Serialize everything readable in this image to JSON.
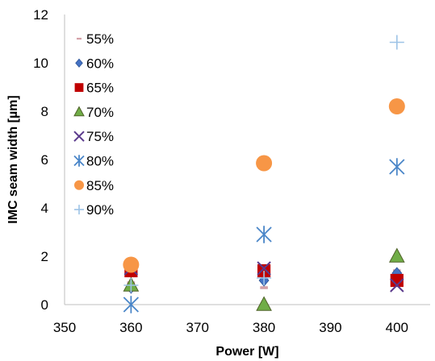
{
  "chart_data": {
    "type": "scatter",
    "title": "",
    "xlabel": "Power [W]",
    "ylabel": "IMC seam width [µm]",
    "xlim": [
      350,
      405
    ],
    "ylim": [
      0,
      12
    ],
    "xticks": [
      "350",
      "360",
      "370",
      "380",
      "390",
      "400"
    ],
    "yticks": [
      "0",
      "2",
      "4",
      "6",
      "8",
      "10",
      "12"
    ],
    "grid": false,
    "legend_position": "top-left",
    "series": [
      {
        "name": "55%",
        "marker": "dash",
        "color": "#D4A0A7",
        "x": [
          360,
          380,
          400
        ],
        "y": [
          0.9,
          0.7,
          1.4
        ]
      },
      {
        "name": "60%",
        "marker": "diamond",
        "color": "#4472C4",
        "x": [
          360,
          380,
          400
        ],
        "y": [
          0.7,
          1.0,
          1.3
        ]
      },
      {
        "name": "65%",
        "marker": "square",
        "color": "#C00000",
        "x": [
          360,
          380,
          400
        ],
        "y": [
          1.4,
          1.4,
          1.0
        ]
      },
      {
        "name": "70%",
        "marker": "triangle",
        "color": "#70AD47",
        "x": [
          360,
          380,
          400
        ],
        "y": [
          0.8,
          0.0,
          2.0
        ]
      },
      {
        "name": "75%",
        "marker": "x",
        "color": "#5B3A8C",
        "x": [
          360,
          380,
          400
        ],
        "y": [
          1.5,
          1.5,
          0.8
        ]
      },
      {
        "name": "80%",
        "marker": "star",
        "color": "#4A86C8",
        "x": [
          360,
          380,
          400
        ],
        "y": [
          0.0,
          2.9,
          5.7
        ]
      },
      {
        "name": "85%",
        "marker": "circle",
        "color": "#F79646",
        "x": [
          360,
          380,
          400
        ],
        "y": [
          1.65,
          5.85,
          8.2
        ]
      },
      {
        "name": "90%",
        "marker": "plus",
        "color": "#9DC3E6",
        "x": [
          360,
          380,
          400
        ],
        "y": [
          0.8,
          1.1,
          10.85
        ]
      }
    ]
  }
}
